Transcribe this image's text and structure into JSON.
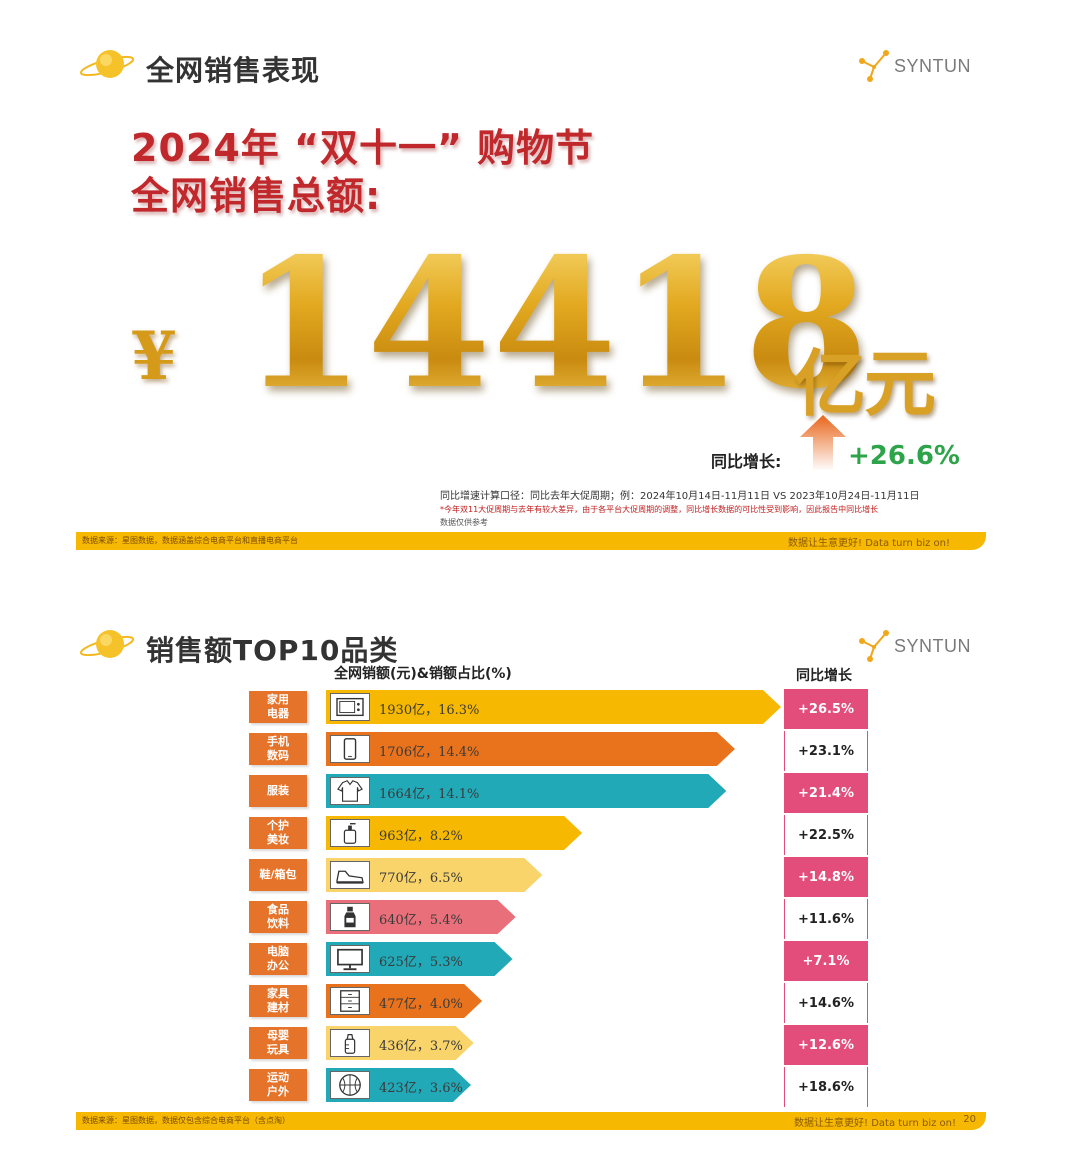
{
  "slide1": {
    "header_title": "全网销售表现",
    "logo_text": "SYNTUN",
    "headline_line1": "2024年 “双十一” 购物节",
    "headline_line2": "全网销售总额:",
    "currency_symbol": "¥",
    "total_amount": "14418",
    "unit": "亿元",
    "growth_label": "同比增长:",
    "growth_value": "+26.6%",
    "note_line1": "同比增速计算口径：同比去年大促周期；例：2024年10月14日-11月11日 VS 2023年10月24日-11月11日",
    "note_line2": "*今年双11大促周期与去年有较大差异，由于各平台大促周期的调整，同比增长数据的可比性受到影响，因此报告中同比增长",
    "note_line3": "数据仅供参考",
    "footer_source": "数据来源：星图数据，数据涵盖综合电商平台和直播电商平台",
    "footer_motto": "数据让生意更好! Data turn biz on!"
  },
  "slide2": {
    "header_title": "销售额TOP10品类",
    "logo_text": "SYNTUN",
    "left_subtitle": "全网销额(元)&销额占比(%)",
    "right_subtitle": "同比增长",
    "footer_source": "数据来源：星图数据，数据仅包含综合电商平台（含点淘）",
    "footer_motto": "数据让生意更好! Data turn biz on!",
    "page_number": "20",
    "categories": [
      {
        "label": "家用\n电器",
        "value_text": "1930亿，16.3%",
        "sales_yi": 1930,
        "share_pct": 16.3,
        "growth": "+26.5%",
        "bar_color": "#f6b800",
        "icon": "microwave-icon"
      },
      {
        "label": "手机\n数码",
        "value_text": "1706亿，14.4%",
        "sales_yi": 1706,
        "share_pct": 14.4,
        "growth": "+23.1%",
        "bar_color": "#e8731c",
        "icon": "phone-icon"
      },
      {
        "label": "服装",
        "value_text": "1664亿，14.1%",
        "sales_yi": 1664,
        "share_pct": 14.1,
        "growth": "+21.4%",
        "bar_color": "#21a9b8",
        "icon": "shirt-icon"
      },
      {
        "label": "个护\n美妆",
        "value_text": "963亿，8.2%",
        "sales_yi": 963,
        "share_pct": 8.2,
        "growth": "+22.5%",
        "bar_color": "#f6b800",
        "icon": "lotion-icon"
      },
      {
        "label": "鞋/箱包",
        "value_text": "770亿，6.5%",
        "sales_yi": 770,
        "share_pct": 6.5,
        "growth": "+14.8%",
        "bar_color": "#f9d46a",
        "icon": "sneaker-icon"
      },
      {
        "label": "食品\n饮料",
        "value_text": "640亿，5.4%",
        "sales_yi": 640,
        "share_pct": 5.4,
        "growth": "+11.6%",
        "bar_color": "#e9707a",
        "icon": "bottle-icon"
      },
      {
        "label": "电脑\n办公",
        "value_text": "625亿，5.3%",
        "sales_yi": 625,
        "share_pct": 5.3,
        "growth": "+7.1%",
        "bar_color": "#21a9b8",
        "icon": "monitor-icon"
      },
      {
        "label": "家具\n建材",
        "value_text": "477亿，4.0%",
        "sales_yi": 477,
        "share_pct": 4.0,
        "growth": "+14.6%",
        "bar_color": "#e8731c",
        "icon": "cabinet-icon"
      },
      {
        "label": "母婴\n玩具",
        "value_text": "436亿，3.7%",
        "sales_yi": 436,
        "share_pct": 3.7,
        "growth": "+12.6%",
        "bar_color": "#f9d46a",
        "icon": "baby-bottle-icon"
      },
      {
        "label": "运动\n户外",
        "value_text": "423亿，3.6%",
        "sales_yi": 423,
        "share_pct": 3.6,
        "growth": "+18.6%",
        "bar_color": "#21a9b8",
        "icon": "basketball-icon"
      }
    ],
    "growth_fill_colors": [
      "#e24d7c",
      "#ffffff"
    ]
  }
}
